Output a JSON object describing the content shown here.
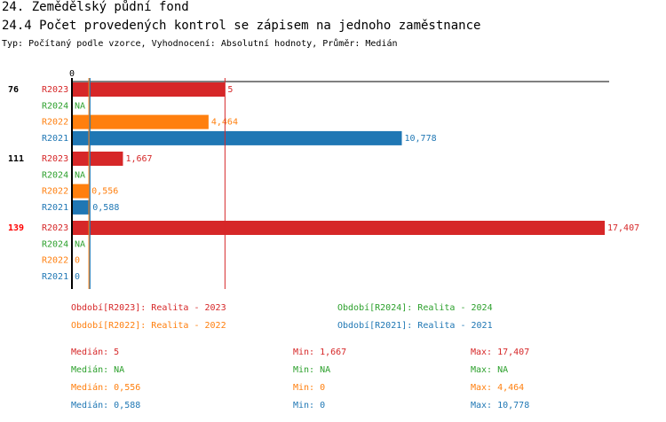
{
  "header": {
    "title": "24. Zemědělský půdní fond",
    "subtitle": "24.4 Počet provedených kontrol se zápisem na jednoho zaměstnance",
    "info": "Typ: Počítaný podle vzorce, Vyhodnocení: Absolutní hodnoty, Průměr: Medián"
  },
  "chart_data": {
    "type": "bar",
    "orientation": "horizontal",
    "xlim": [
      0,
      17.407
    ],
    "x_tick_labels": [
      "0"
    ],
    "groups": [
      {
        "label": "76",
        "highlight": false,
        "bars": [
          {
            "series": "R2023",
            "value": 5,
            "label": "5"
          },
          {
            "series": "R2024",
            "value": null,
            "label": "NA"
          },
          {
            "series": "R2022",
            "value": 4.464,
            "label": "4,464"
          },
          {
            "series": "R2021",
            "value": 10.778,
            "label": "10,778"
          }
        ]
      },
      {
        "label": "111",
        "highlight": false,
        "bars": [
          {
            "series": "R2023",
            "value": 1.667,
            "label": "1,667"
          },
          {
            "series": "R2024",
            "value": null,
            "label": "NA"
          },
          {
            "series": "R2022",
            "value": 0.556,
            "label": "0,556"
          },
          {
            "series": "R2021",
            "value": 0.588,
            "label": "0,588"
          }
        ]
      },
      {
        "label": "139",
        "highlight": true,
        "bars": [
          {
            "series": "R2023",
            "value": 17.407,
            "label": "17,407"
          },
          {
            "series": "R2024",
            "value": null,
            "label": "NA"
          },
          {
            "series": "R2022",
            "value": 0,
            "label": "0"
          },
          {
            "series": "R2021",
            "value": 0,
            "label": "0"
          }
        ]
      }
    ],
    "colors": {
      "R2023": "#d62728",
      "R2024": "#2ca02c",
      "R2022": "#ff7f0e",
      "R2021": "#1f77b4",
      "highlight": "#ff0000"
    },
    "median_lines": [
      {
        "series": "R2023",
        "value": 5
      },
      {
        "series": "R2022",
        "value": 0.556
      },
      {
        "series": "R2021",
        "value": 0.588
      }
    ],
    "legend": [
      {
        "series": "R2023",
        "text": "Období[R2023]: Realita - 2023"
      },
      {
        "series": "R2024",
        "text": "Období[R2024]: Realita - 2024"
      },
      {
        "series": "R2022",
        "text": "Období[R2022]: Realita - 2022"
      },
      {
        "series": "R2021",
        "text": "Období[R2021]: Realita - 2021"
      }
    ],
    "stats": [
      {
        "series": "R2023",
        "median": "Medián: 5",
        "min": "Min: 1,667",
        "max": "Max: 17,407"
      },
      {
        "series": "R2024",
        "median": "Medián: NA",
        "min": "Min: NA",
        "max": "Max: NA"
      },
      {
        "series": "R2022",
        "median": "Medián: 0,556",
        "min": "Min: 0",
        "max": "Max: 4,464"
      },
      {
        "series": "R2021",
        "median": "Medián: 0,588",
        "min": "Min: 0",
        "max": "Max: 10,778"
      }
    ]
  }
}
